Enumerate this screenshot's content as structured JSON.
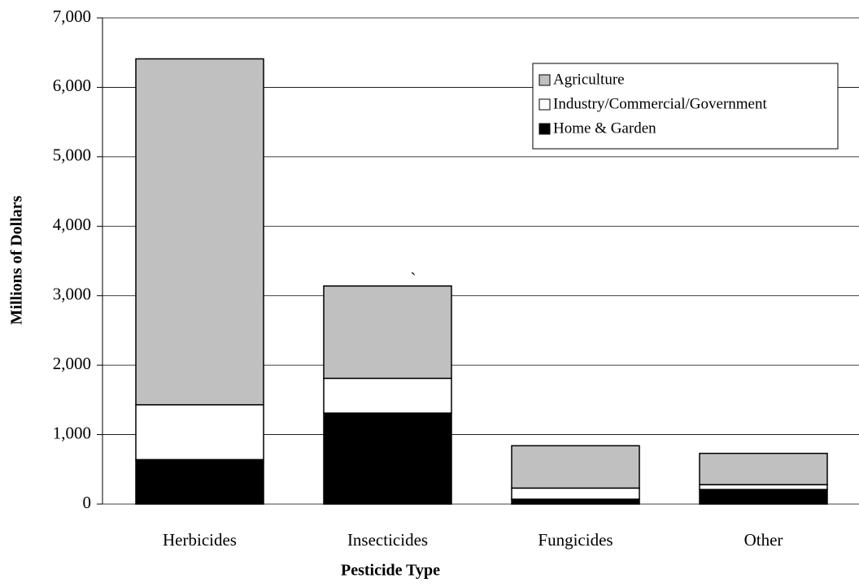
{
  "chart_data": {
    "type": "stacked_bar",
    "x_label": "Pesticide Type",
    "y_label": "Millions of Dollars",
    "annotation": "`",
    "categories": [
      "Herbicides",
      "Insecticides",
      "Fungicides",
      "Other"
    ],
    "series": [
      {
        "name": "Home & Garden",
        "color": "#000000",
        "values": [
          640,
          1310,
          70,
          210
        ]
      },
      {
        "name": "Industry/Commercial/Government",
        "color": "#ffffff",
        "values": [
          790,
          500,
          160,
          70
        ]
      },
      {
        "name": "Agriculture",
        "color": "#c0c0c0",
        "values": [
          4980,
          1330,
          610,
          450
        ]
      }
    ],
    "ylim": [
      0,
      7000
    ],
    "yticks": [
      {
        "value": 0,
        "label": "0"
      },
      {
        "value": 1000,
        "label": "1,000"
      },
      {
        "value": 2000,
        "label": "2,000"
      },
      {
        "value": 3000,
        "label": "3,000"
      },
      {
        "value": 4000,
        "label": "4,000"
      },
      {
        "value": 5000,
        "label": "5,000"
      },
      {
        "value": 6000,
        "label": "6,000"
      },
      {
        "value": 7000,
        "label": "7,000"
      }
    ],
    "grid": true,
    "legend": "upper right"
  }
}
